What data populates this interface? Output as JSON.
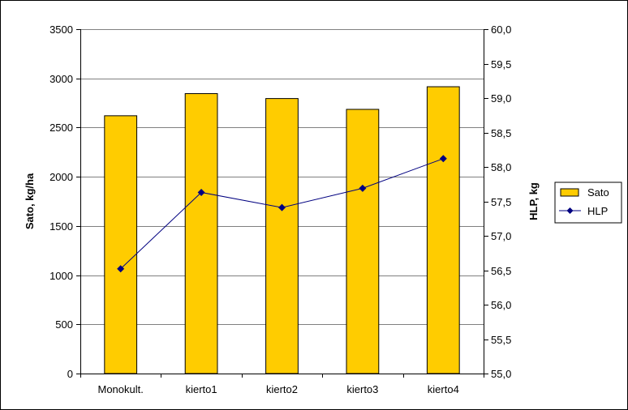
{
  "chart_data": {
    "type": "bar",
    "categories": [
      "Monokult.",
      "kierto1",
      "kierto2",
      "kierto3",
      "kierto4"
    ],
    "series": [
      {
        "name": "Sato",
        "type": "bar",
        "axis": "left",
        "color": "#FFCC00",
        "values": [
          2620,
          2845,
          2795,
          2685,
          2915
        ]
      },
      {
        "name": "HLP",
        "type": "line",
        "axis": "right",
        "color": "#000080",
        "marker": "diamond",
        "values": [
          56.52,
          57.63,
          57.41,
          57.69,
          58.12
        ]
      }
    ],
    "ylabel": "Sato, kg/ha",
    "y2label": "HLP, kg",
    "ylim": [
      0,
      3500
    ],
    "y2lim": [
      55.0,
      60.0
    ],
    "yticks": [
      "0",
      "500",
      "1000",
      "1500",
      "2000",
      "2500",
      "3000",
      "3500"
    ],
    "y2ticks": [
      "55,0",
      "55,5",
      "56,0",
      "56,5",
      "57,0",
      "57,5",
      "58,0",
      "58,5",
      "59,0",
      "59,5",
      "60,0"
    ],
    "grid": "horizontal",
    "legend": "right"
  }
}
